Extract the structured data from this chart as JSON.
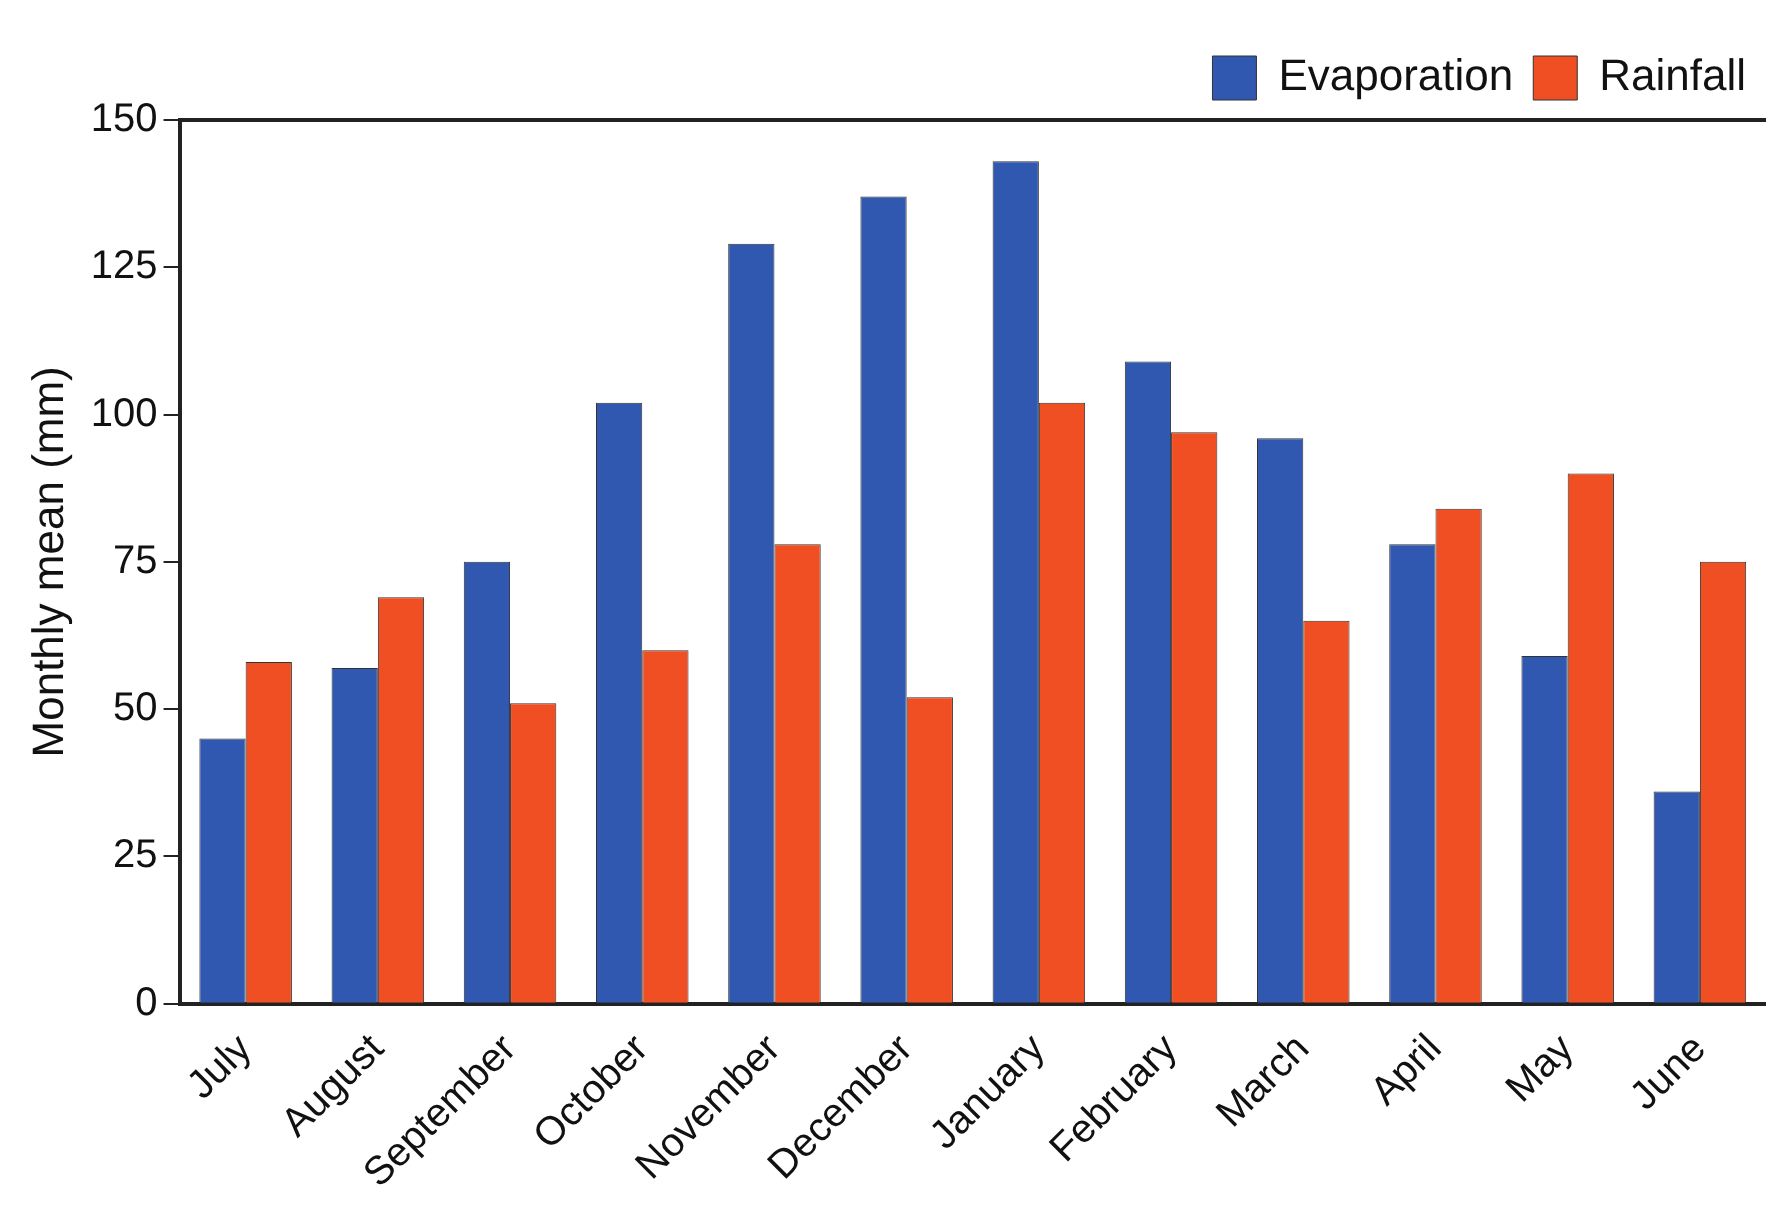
{
  "chart_data": {
    "type": "bar",
    "ylabel": "Monthly mean (mm)",
    "categories": [
      "July",
      "August",
      "September",
      "October",
      "November",
      "December",
      "January",
      "February",
      "March",
      "April",
      "May",
      "June"
    ],
    "series": [
      {
        "name": "Evaporation",
        "color": "#3058b0",
        "values": [
          45,
          57,
          75,
          102,
          129,
          137,
          143,
          109,
          96,
          78,
          59,
          36
        ]
      },
      {
        "name": "Rainfall",
        "color": "#f04e23",
        "values": [
          58,
          69,
          51,
          60,
          78,
          52,
          102,
          97,
          65,
          84,
          90,
          75
        ]
      }
    ],
    "ylim": [
      0,
      150
    ],
    "yticks": [
      0,
      25,
      50,
      75,
      100,
      125,
      150
    ],
    "grid": false,
    "legend": "top right"
  }
}
